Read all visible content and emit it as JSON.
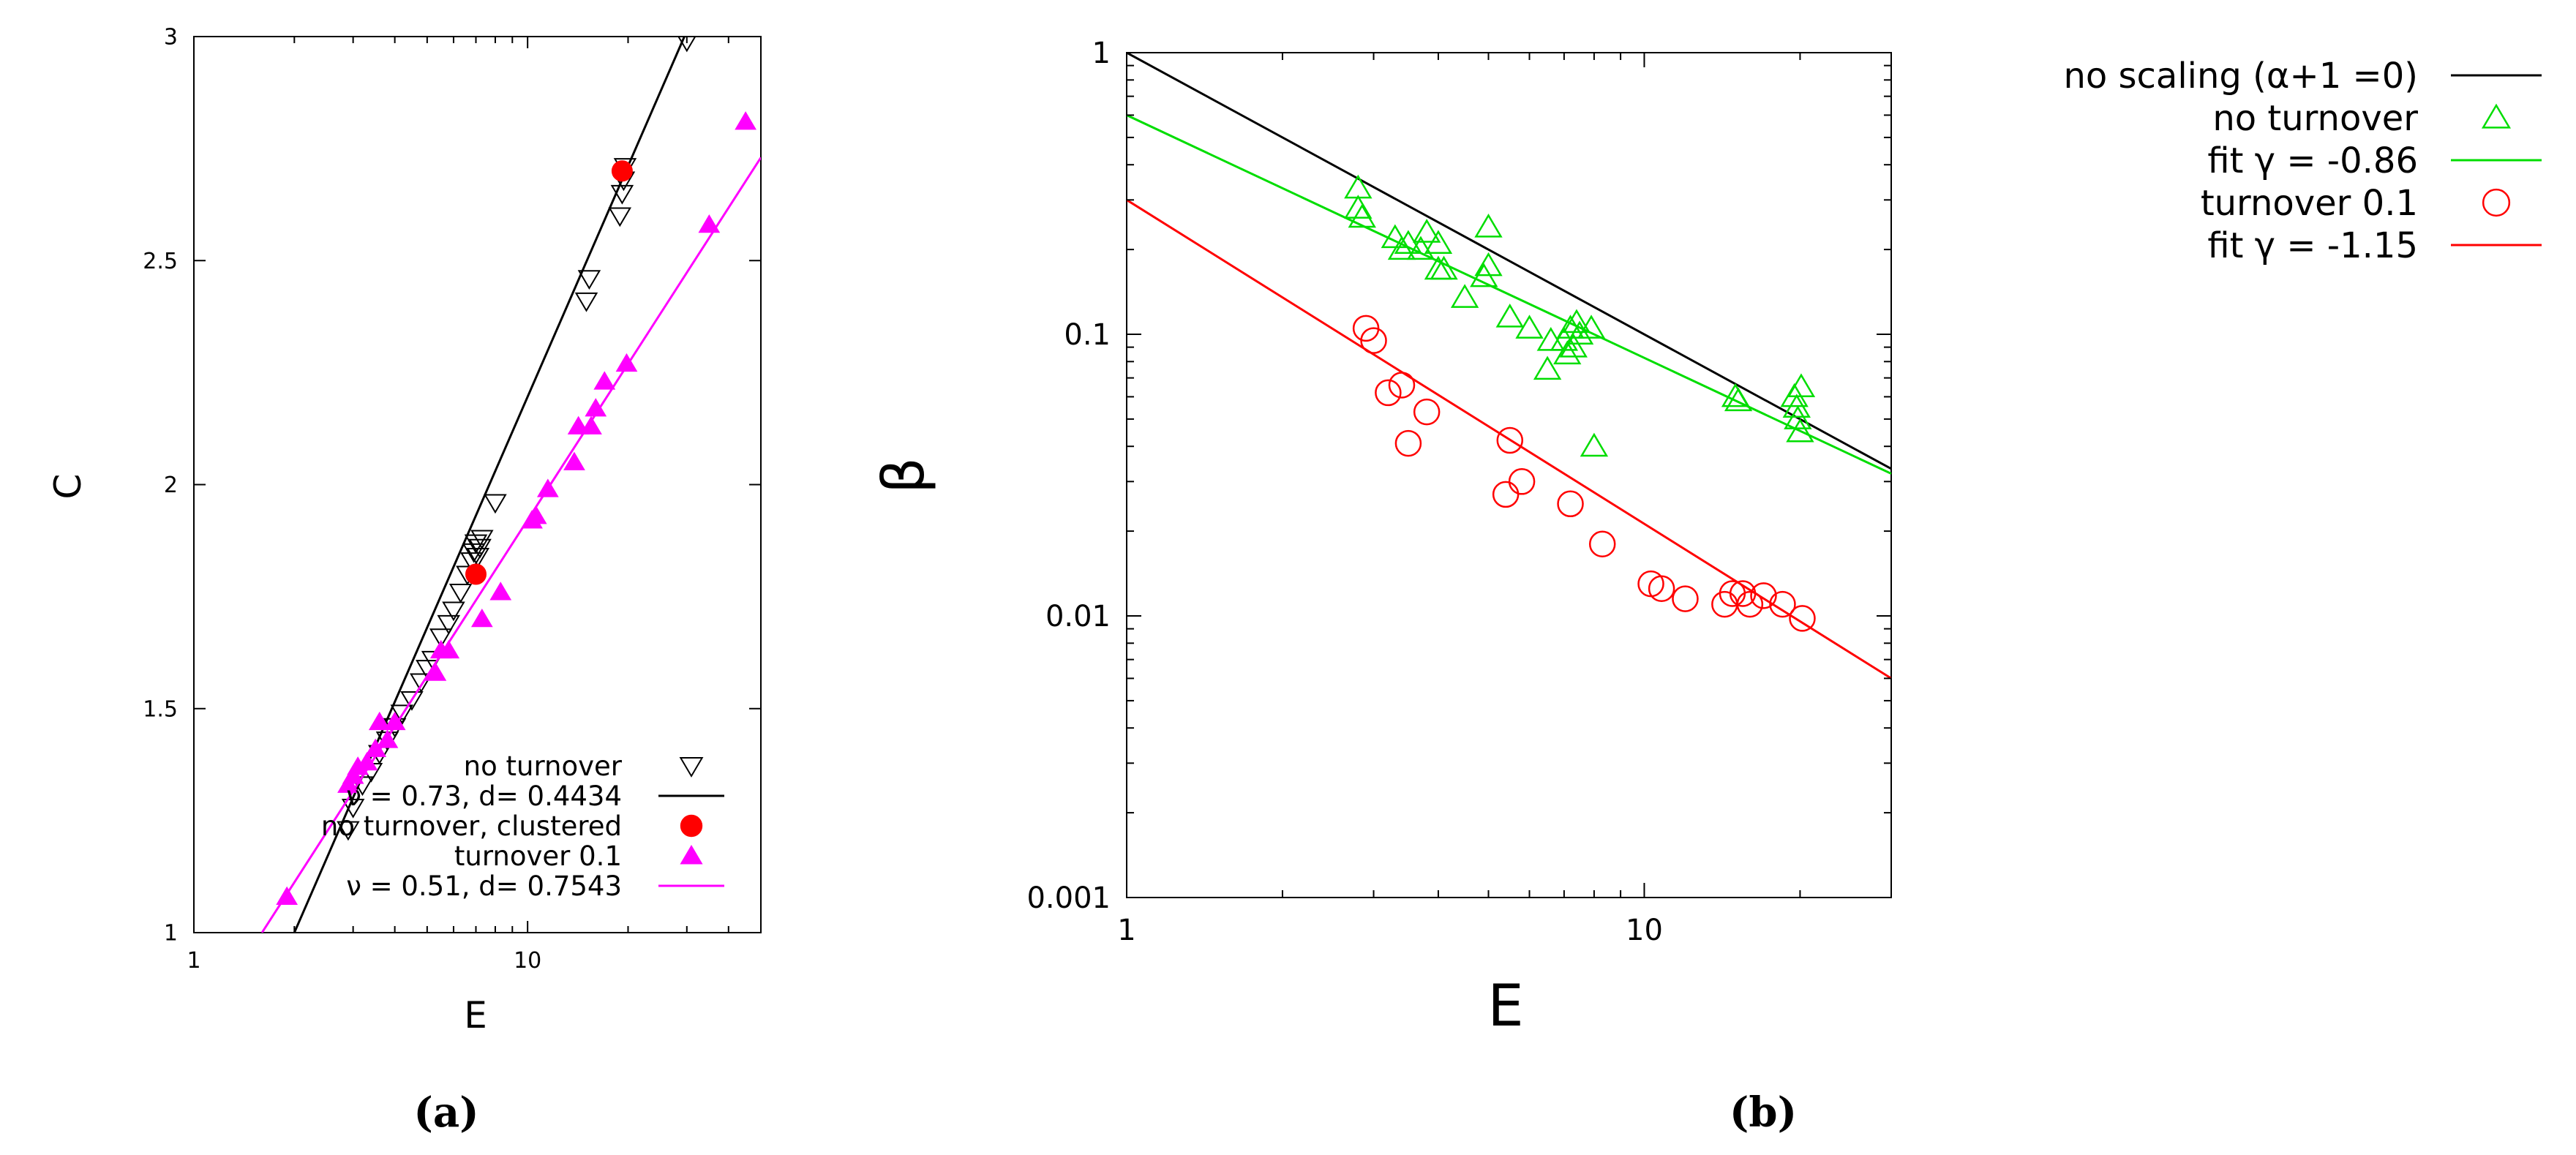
{
  "chart_data": [
    {
      "type": "scatter",
      "panel_label": "(a)",
      "xlabel": "E",
      "ylabel": "C",
      "xscale": "log",
      "yscale": "linear",
      "xlim": [
        1,
        50
      ],
      "ylim": [
        1,
        3
      ],
      "x_ticks": [
        {
          "v": 1,
          "label": "1"
        },
        {
          "v": 10,
          "label": "10"
        }
      ],
      "y_ticks": [
        {
          "v": 1,
          "label": "1"
        },
        {
          "v": 1.5,
          "label": "1.5"
        },
        {
          "v": 2,
          "label": "2"
        },
        {
          "v": 2.5,
          "label": "2.5"
        },
        {
          "v": 3,
          "label": "3"
        }
      ],
      "legend_position": "bottom-right",
      "colors": {
        "no_turnover": "#000000",
        "clustered": "#ff0000",
        "turnover": "#ff00ff"
      },
      "series": [
        {
          "name": "no turnover",
          "marker": "triangle-down-open",
          "color": "#000000",
          "points": [
            [
              2.9,
              1.23
            ],
            [
              3.0,
              1.28
            ],
            [
              3.2,
              1.33
            ],
            [
              3.4,
              1.36
            ],
            [
              3.6,
              1.4
            ],
            [
              3.8,
              1.43
            ],
            [
              4.0,
              1.46
            ],
            [
              4.2,
              1.49
            ],
            [
              4.5,
              1.52
            ],
            [
              4.8,
              1.56
            ],
            [
              5.0,
              1.59
            ],
            [
              5.2,
              1.61
            ],
            [
              5.5,
              1.66
            ],
            [
              5.8,
              1.69
            ],
            [
              6.0,
              1.72
            ],
            [
              6.3,
              1.76
            ],
            [
              6.6,
              1.8
            ],
            [
              6.8,
              1.83
            ],
            [
              6.9,
              1.85
            ],
            [
              7.0,
              1.87
            ],
            [
              7.1,
              1.84
            ],
            [
              7.2,
              1.86
            ],
            [
              7.3,
              1.88
            ],
            [
              8.0,
              1.96
            ],
            [
              15.0,
              2.41
            ],
            [
              15.3,
              2.46
            ],
            [
              18.9,
              2.6
            ],
            [
              19.2,
              2.65
            ],
            [
              19.4,
              2.68
            ],
            [
              19.6,
              2.71
            ],
            [
              30.0,
              2.99
            ]
          ]
        },
        {
          "name": "ν = 0.73, d= 0.4434",
          "marker": "line",
          "color": "#000000",
          "line": [
            [
              2.0,
              1.0
            ],
            [
              29.5,
              3.0
            ]
          ]
        },
        {
          "name": "no turnover, clustered",
          "marker": "circle-filled",
          "color": "#ff0000",
          "points": [
            [
              7.0,
              1.8
            ],
            [
              19.2,
              2.7
            ]
          ]
        },
        {
          "name": "turnover 0.1",
          "marker": "triangle-up-filled",
          "color": "#ff00ff",
          "points": [
            [
              1.9,
              1.08
            ],
            [
              2.9,
              1.33
            ],
            [
              3.0,
              1.35
            ],
            [
              3.1,
              1.37
            ],
            [
              3.3,
              1.38
            ],
            [
              3.5,
              1.41
            ],
            [
              3.6,
              1.47
            ],
            [
              3.8,
              1.43
            ],
            [
              4.0,
              1.47
            ],
            [
              5.3,
              1.58
            ],
            [
              5.5,
              1.63
            ],
            [
              5.8,
              1.63
            ],
            [
              7.3,
              1.7
            ],
            [
              8.3,
              1.76
            ],
            [
              10.3,
              1.92
            ],
            [
              10.6,
              1.93
            ],
            [
              11.5,
              1.99
            ],
            [
              13.8,
              2.05
            ],
            [
              14.2,
              2.13
            ],
            [
              15.5,
              2.13
            ],
            [
              16.0,
              2.17
            ],
            [
              17.0,
              2.23
            ],
            [
              19.8,
              2.27
            ],
            [
              35.0,
              2.58
            ],
            [
              45.0,
              2.81
            ]
          ]
        },
        {
          "name": "ν = 0.51, d= 0.7543",
          "marker": "line",
          "color": "#ff00ff",
          "line": [
            [
              1.6,
              1.0
            ],
            [
              50.0,
              2.73
            ]
          ]
        }
      ]
    },
    {
      "type": "scatter",
      "panel_label": "(b)",
      "xlabel": "E",
      "ylabel": "β",
      "xscale": "log",
      "yscale": "log",
      "xlim": [
        1,
        30
      ],
      "ylim": [
        0.001,
        1
      ],
      "x_ticks": [
        {
          "v": 1,
          "label": "1"
        },
        {
          "v": 10,
          "label": "10"
        }
      ],
      "y_ticks": [
        {
          "v": 0.001,
          "label": "0.001"
        },
        {
          "v": 0.01,
          "label": "0.01"
        },
        {
          "v": 0.1,
          "label": "0.1"
        },
        {
          "v": 1,
          "label": "1"
        }
      ],
      "legend_position": "outside-right",
      "colors": {
        "no_scaling": "#000000",
        "no_turnover": "#00dd00",
        "turnover": "#ff0000"
      },
      "series": [
        {
          "name": "no scaling (α+1 =0)",
          "marker": "line",
          "color": "#000000",
          "line": [
            [
              1,
              1.0
            ],
            [
              30,
              0.0333
            ]
          ]
        },
        {
          "name": "no turnover",
          "marker": "triangle-up-open",
          "color": "#00dd00",
          "points": [
            [
              2.8,
              0.33
            ],
            [
              2.8,
              0.28
            ],
            [
              2.85,
              0.26
            ],
            [
              3.3,
              0.22
            ],
            [
              3.4,
              0.2
            ],
            [
              3.5,
              0.21
            ],
            [
              3.7,
              0.2
            ],
            [
              3.8,
              0.23
            ],
            [
              4.0,
              0.17
            ],
            [
              4.1,
              0.17
            ],
            [
              4.0,
              0.21
            ],
            [
              4.5,
              0.135
            ],
            [
              4.9,
              0.16
            ],
            [
              5.0,
              0.24
            ],
            [
              5.0,
              0.175
            ],
            [
              5.5,
              0.115
            ],
            [
              6.0,
              0.105
            ],
            [
              6.5,
              0.075
            ],
            [
              6.6,
              0.095
            ],
            [
              7.0,
              0.095
            ],
            [
              7.1,
              0.085
            ],
            [
              7.2,
              0.105
            ],
            [
              7.3,
              0.09
            ],
            [
              7.4,
              0.11
            ],
            [
              7.5,
              0.1
            ],
            [
              7.9,
              0.105
            ],
            [
              8.0,
              0.04
            ],
            [
              15.0,
              0.06
            ],
            [
              15.2,
              0.058
            ],
            [
              19.5,
              0.06
            ],
            [
              19.7,
              0.055
            ],
            [
              19.8,
              0.05
            ],
            [
              20.0,
              0.045
            ],
            [
              20.1,
              0.065
            ]
          ]
        },
        {
          "name": "fit γ = -0.86",
          "marker": "line",
          "color": "#00dd00",
          "line": [
            [
              1,
              0.6
            ],
            [
              30,
              0.032
            ]
          ]
        },
        {
          "name": "turnover 0.1",
          "marker": "circle-open",
          "color": "#ff0000",
          "points": [
            [
              2.9,
              0.105
            ],
            [
              3.0,
              0.095
            ],
            [
              3.2,
              0.062
            ],
            [
              3.4,
              0.066
            ],
            [
              3.5,
              0.041
            ],
            [
              3.8,
              0.053
            ],
            [
              5.4,
              0.027
            ],
            [
              5.5,
              0.042
            ],
            [
              5.8,
              0.03
            ],
            [
              7.2,
              0.025
            ],
            [
              8.3,
              0.018
            ],
            [
              10.3,
              0.013
            ],
            [
              10.8,
              0.0125
            ],
            [
              12.0,
              0.0115
            ],
            [
              14.3,
              0.011
            ],
            [
              14.8,
              0.012
            ],
            [
              15.5,
              0.012
            ],
            [
              16.0,
              0.011
            ],
            [
              17.0,
              0.0118
            ],
            [
              18.5,
              0.011
            ],
            [
              20.2,
              0.0098
            ]
          ]
        },
        {
          "name": "fit γ = -1.15",
          "marker": "line",
          "color": "#ff0000",
          "line": [
            [
              1,
              0.3
            ],
            [
              30,
              0.006
            ]
          ]
        }
      ]
    }
  ]
}
